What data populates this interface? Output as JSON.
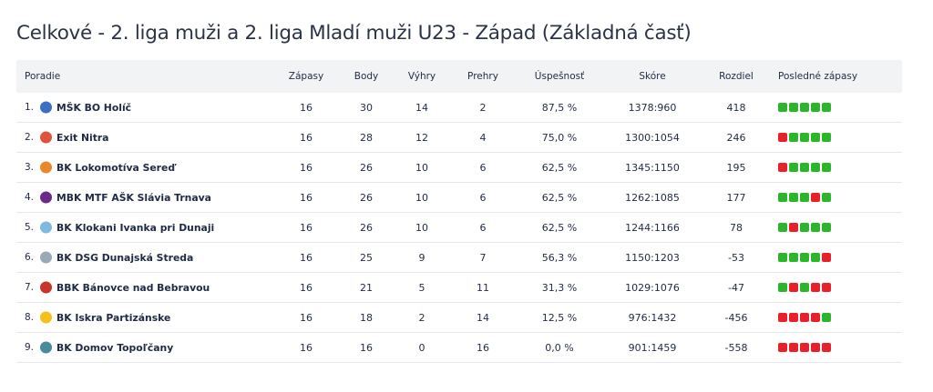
{
  "title": "Celkové - 2. liga muži a 2. liga Mladí muži U23 - Západ (Základná časť)",
  "headers": {
    "rank": "Poradie",
    "matches": "Zápasy",
    "points": "Body",
    "wins": "Výhry",
    "losses": "Prehry",
    "success": "Úspešnosť",
    "score": "Skóre",
    "diff": "Rozdiel",
    "last": "Posledné zápasy"
  },
  "colors": {
    "win": "#2bb52b",
    "loss": "#e8202a"
  },
  "rows": [
    {
      "rank": "1.",
      "team": "MŠK BO Holíč",
      "logo_color": "#3a6fc4",
      "logo_icon": "shield-logo-icon",
      "matches": "16",
      "points": "30",
      "wins": "14",
      "losses": "2",
      "success": "87,5 %",
      "score": "1378:960",
      "diff": "418",
      "form": [
        "W",
        "W",
        "W",
        "W",
        "W"
      ]
    },
    {
      "rank": "2.",
      "team": "Exit Nitra",
      "logo_color": "#e0533a",
      "logo_icon": "ball-logo-icon",
      "matches": "16",
      "points": "28",
      "wins": "12",
      "losses": "4",
      "success": "75,0 %",
      "score": "1300:1054",
      "diff": "246",
      "form": [
        "L",
        "W",
        "W",
        "W",
        "W"
      ]
    },
    {
      "rank": "3.",
      "team": "BK Lokomotíva Sereď",
      "logo_color": "#e8882a",
      "logo_icon": "ball-logo-icon",
      "matches": "16",
      "points": "26",
      "wins": "10",
      "losses": "6",
      "success": "62,5 %",
      "score": "1345:1150",
      "diff": "195",
      "form": [
        "L",
        "W",
        "W",
        "W",
        "W"
      ]
    },
    {
      "rank": "4.",
      "team": "MBK MTF AŠK Slávia Trnava",
      "logo_color": "#6a2a8c",
      "logo_icon": "crest-logo-icon",
      "matches": "16",
      "points": "26",
      "wins": "10",
      "losses": "6",
      "success": "62,5 %",
      "score": "1262:1085",
      "diff": "177",
      "form": [
        "W",
        "W",
        "W",
        "L",
        "W"
      ]
    },
    {
      "rank": "5.",
      "team": "BK Klokani Ivanka pri Dunaji",
      "logo_color": "#7fb8e0",
      "logo_icon": "kangaroo-logo-icon",
      "matches": "16",
      "points": "26",
      "wins": "10",
      "losses": "6",
      "success": "62,5 %",
      "score": "1244:1166",
      "diff": "78",
      "form": [
        "W",
        "L",
        "W",
        "W",
        "W"
      ]
    },
    {
      "rank": "6.",
      "team": "BK DSG Dunajská Streda",
      "logo_color": "#9aa8b8",
      "logo_icon": "crest-logo-icon",
      "matches": "16",
      "points": "25",
      "wins": "9",
      "losses": "7",
      "success": "56,3 %",
      "score": "1150:1203",
      "diff": "-53",
      "form": [
        "W",
        "W",
        "W",
        "W",
        "L"
      ]
    },
    {
      "rank": "7.",
      "team": "BBK Bánovce nad Bebravou",
      "logo_color": "#c8342a",
      "logo_icon": "ball-logo-icon",
      "matches": "16",
      "points": "21",
      "wins": "5",
      "losses": "11",
      "success": "31,3 %",
      "score": "1029:1076",
      "diff": "-47",
      "form": [
        "W",
        "L",
        "W",
        "L",
        "L"
      ]
    },
    {
      "rank": "8.",
      "team": "BK Iskra Partizánske",
      "logo_color": "#f2c21a",
      "logo_icon": "spark-logo-icon",
      "matches": "16",
      "points": "18",
      "wins": "2",
      "losses": "14",
      "success": "12,5 %",
      "score": "976:1432",
      "diff": "-456",
      "form": [
        "L",
        "L",
        "L",
        "L",
        "W"
      ]
    },
    {
      "rank": "9.",
      "team": "BK Domov Topoľčany",
      "logo_color": "#4a8a9a",
      "logo_icon": "crest-logo-icon",
      "matches": "16",
      "points": "16",
      "wins": "0",
      "losses": "16",
      "success": "0,0 %",
      "score": "901:1459",
      "diff": "-558",
      "form": [
        "L",
        "L",
        "L",
        "L",
        "L"
      ]
    }
  ]
}
